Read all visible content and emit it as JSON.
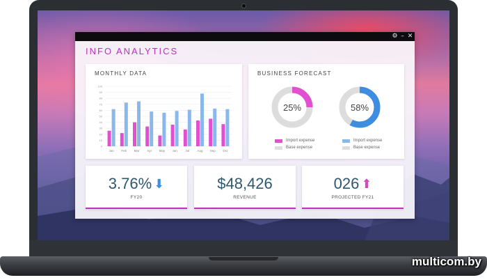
{
  "app": {
    "title": "INFO ANALYTICS"
  },
  "window_controls": {
    "settings_glyph": "⚙",
    "minimize_glyph": "–",
    "close_glyph": "✕"
  },
  "monthly": {
    "title": "MONTHLY DATA",
    "chart_data": {
      "type": "bar",
      "categories": [
        "Jan",
        "Feb",
        "Mar",
        "Apr",
        "May",
        "Jun",
        "Jul",
        "Aug",
        "Sep",
        "Oct"
      ],
      "ylim": [
        0,
        100
      ],
      "yticks": [
        "0",
        "10",
        "20",
        "30",
        "40",
        "50",
        "60",
        "70",
        "80",
        "90",
        "100"
      ],
      "series": [
        {
          "values": [
            26,
            22,
            40,
            33,
            18,
            36,
            28,
            43,
            46,
            37
          ],
          "color": "#e050d0"
        },
        {
          "values": [
            62,
            73,
            75,
            58,
            56,
            59,
            61,
            88,
            63,
            62
          ],
          "color": "#8ab8ea"
        }
      ]
    }
  },
  "forecast": {
    "title": "BUSINESS FORECAST",
    "chart_data": [
      {
        "type": "pie",
        "value_label": "25%",
        "values": [
          25,
          75
        ],
        "colors": [
          "#e050d0",
          "#dddddd"
        ],
        "legend": [
          "Import expense",
          "Base expense"
        ]
      },
      {
        "type": "pie",
        "value_label": "58%",
        "values": [
          58,
          42
        ],
        "colors": [
          "#3d8de0",
          "#dddddd"
        ],
        "legend": [
          "Import expense",
          "Base expense"
        ]
      }
    ]
  },
  "kpis": [
    {
      "value": "3.76%",
      "label": "FY20",
      "arrow": "down",
      "arrow_glyph": "⬇",
      "arrow_color": "#3d8de0"
    },
    {
      "value": "$48,426",
      "label": "REVENUE"
    },
    {
      "value": "026",
      "label": "PROJECTED FY21",
      "arrow": "up",
      "arrow_glyph": "⬆",
      "arrow_color": "#d04ac0"
    }
  ],
  "watermark": "multicom.by"
}
